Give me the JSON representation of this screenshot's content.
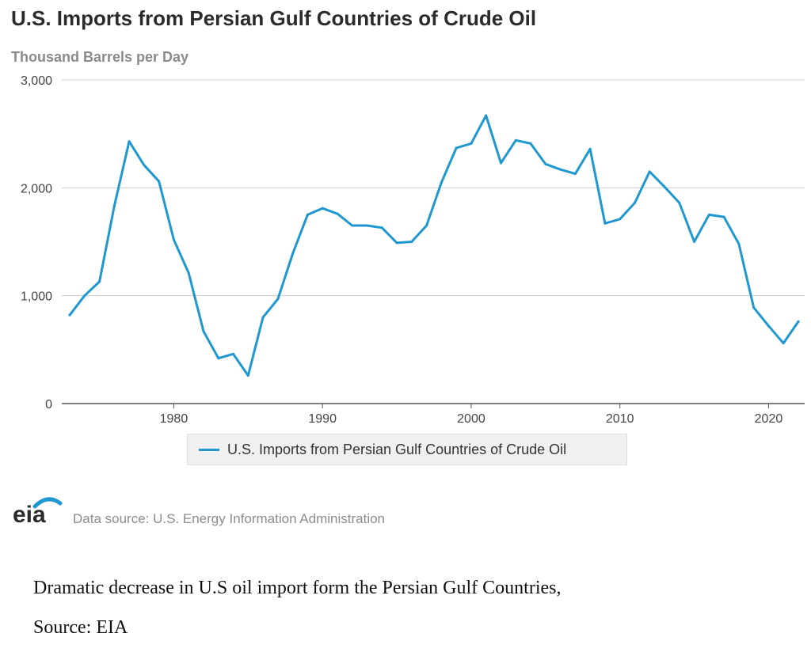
{
  "chart_data": {
    "type": "line",
    "title": "U.S. Imports from Persian Gulf Countries of Crude Oil",
    "ylabel": "Thousand Barrels per Day",
    "xlabel": "",
    "ylim": [
      0,
      3000
    ],
    "xlim": [
      1973,
      2022
    ],
    "yticks": [
      0,
      1000,
      2000,
      3000
    ],
    "ytick_labels": [
      "0",
      "1,000",
      "2,000",
      "3,000"
    ],
    "xticks": [
      1980,
      1990,
      2000,
      2010,
      2020
    ],
    "xtick_labels": [
      "1980",
      "1990",
      "2000",
      "2010",
      "2020"
    ],
    "grid": "horizontal",
    "legend_position": "bottom",
    "x": [
      1973,
      1974,
      1975,
      1976,
      1977,
      1978,
      1979,
      1980,
      1981,
      1982,
      1983,
      1984,
      1985,
      1986,
      1987,
      1988,
      1989,
      1990,
      1991,
      1992,
      1993,
      1994,
      1995,
      1996,
      1997,
      1998,
      1999,
      2000,
      2001,
      2002,
      2003,
      2004,
      2005,
      2006,
      2007,
      2008,
      2009,
      2010,
      2011,
      2012,
      2013,
      2014,
      2015,
      2016,
      2017,
      2018,
      2019,
      2020,
      2021,
      2022
    ],
    "series": [
      {
        "name": "U.S. Imports from Persian Gulf Countries of Crude Oil",
        "color": "#1f97cf",
        "values": [
          820,
          1000,
          1130,
          1830,
          2430,
          2210,
          2060,
          1520,
          1210,
          670,
          420,
          460,
          260,
          800,
          970,
          1390,
          1750,
          1810,
          1760,
          1650,
          1650,
          1630,
          1490,
          1500,
          1650,
          2050,
          2370,
          2410,
          2670,
          2230,
          2440,
          2410,
          2220,
          2170,
          2130,
          2360,
          1670,
          1710,
          1860,
          2150,
          2010,
          1860,
          1500,
          1750,
          1730,
          1480,
          890,
          720,
          560,
          760
        ]
      }
    ]
  },
  "footer": {
    "logo_text": "eia",
    "source": "Data source: U.S. Energy Information Administration"
  },
  "caption": {
    "line1": "Dramatic decrease in U.S oil import form the Persian Gulf Countries,",
    "line2": "Source: EIA"
  }
}
